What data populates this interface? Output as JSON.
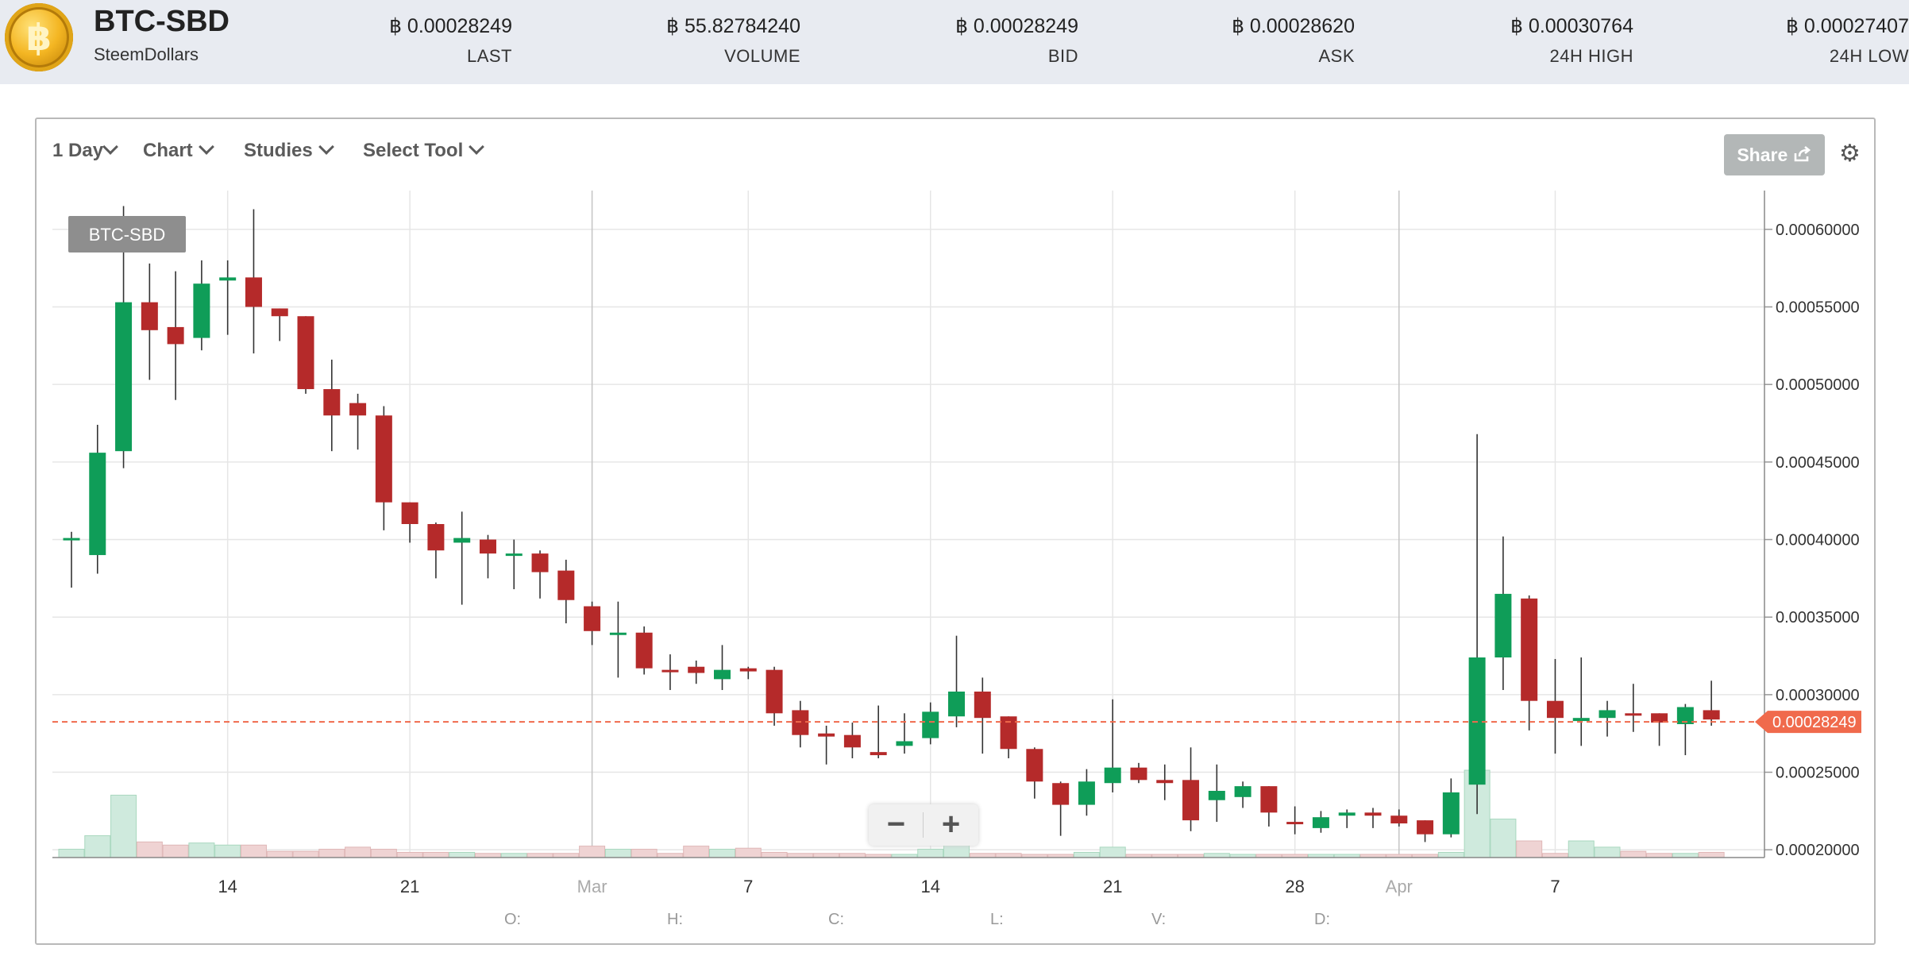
{
  "header": {
    "pair": "BTC-SBD",
    "name": "SteemDollars",
    "stats": [
      {
        "value": "฿ 0.00028249",
        "label": "LAST"
      },
      {
        "value": "฿ 55.82784240",
        "label": "VOLUME"
      },
      {
        "value": "฿ 0.00028249",
        "label": "BID"
      },
      {
        "value": "฿ 0.00028620",
        "label": "ASK"
      },
      {
        "value": "฿ 0.00030764",
        "label": "24H HIGH"
      },
      {
        "value": "฿ 0.00027407",
        "label": "24H LOW"
      }
    ]
  },
  "toolbar": {
    "period": "1 Day",
    "chart": "Chart",
    "studies": "Studies",
    "select_tool": "Select Tool",
    "share": "Share"
  },
  "zoom": {
    "minus": "−",
    "plus": "+"
  },
  "icons": {
    "logo": "bitcoin-logo-icon",
    "share": "share-icon",
    "gear": "gear-icon"
  },
  "colors": {
    "up": "#0f9d58",
    "down": "#b52a2a",
    "last_price": "#f06a4c",
    "vol_up": "#cfeadd",
    "vol_down": "#efd3d3"
  },
  "chart_data": {
    "type": "candlestick",
    "title": "",
    "series_label": "BTC-SBD",
    "ylim": [
      0.000195,
      0.000625
    ],
    "y_ticks": [
      "0.00020000",
      "0.00025000",
      "0.00030000",
      "0.00035000",
      "0.00040000",
      "0.00045000",
      "0.00050000",
      "0.00055000",
      "0.00060000"
    ],
    "x_ticks": [
      {
        "label": "14",
        "i": 6
      },
      {
        "label": "21",
        "i": 13
      },
      {
        "label": "Mar",
        "i": 20,
        "major": true
      },
      {
        "label": "7",
        "i": 26
      },
      {
        "label": "14",
        "i": 33
      },
      {
        "label": "21",
        "i": 40
      },
      {
        "label": "28",
        "i": 47
      },
      {
        "label": "Apr",
        "i": 51,
        "major": true
      },
      {
        "label": "7",
        "i": 57
      }
    ],
    "last_price": "0.00028249",
    "last_price_value": 0.00028249,
    "ohlc_legend": [
      "O:",
      "H:",
      "C:",
      "L:",
      "V:",
      "D:"
    ],
    "candles": [
      {
        "o": 0.000401,
        "h": 0.000405,
        "l": 0.000369,
        "c": 0.000401,
        "v": 0.8
      },
      {
        "o": 0.00039,
        "h": 0.000474,
        "l": 0.000378,
        "c": 0.000456,
        "v": 2.1
      },
      {
        "o": 0.000457,
        "h": 0.000615,
        "l": 0.000446,
        "c": 0.000553,
        "v": 6.0
      },
      {
        "o": 0.000553,
        "h": 0.000578,
        "l": 0.000503,
        "c": 0.000535,
        "v": 1.5
      },
      {
        "o": 0.000537,
        "h": 0.000573,
        "l": 0.00049,
        "c": 0.000526,
        "v": 1.2
      },
      {
        "o": 0.00053,
        "h": 0.00058,
        "l": 0.000522,
        "c": 0.000565,
        "v": 1.4
      },
      {
        "o": 0.000567,
        "h": 0.00058,
        "l": 0.000532,
        "c": 0.000569,
        "v": 1.2
      },
      {
        "o": 0.000569,
        "h": 0.000613,
        "l": 0.00052,
        "c": 0.00055,
        "v": 1.2
      },
      {
        "o": 0.000549,
        "h": 0.000549,
        "l": 0.000528,
        "c": 0.000544,
        "v": 0.6
      },
      {
        "o": 0.000544,
        "h": 0.000544,
        "l": 0.000494,
        "c": 0.000497,
        "v": 0.6
      },
      {
        "o": 0.000497,
        "h": 0.000516,
        "l": 0.000457,
        "c": 0.00048,
        "v": 0.8
      },
      {
        "o": 0.000488,
        "h": 0.000494,
        "l": 0.000458,
        "c": 0.00048,
        "v": 1.0
      },
      {
        "o": 0.00048,
        "h": 0.000486,
        "l": 0.000406,
        "c": 0.000424,
        "v": 0.8
      },
      {
        "o": 0.000424,
        "h": 0.000424,
        "l": 0.000398,
        "c": 0.00041,
        "v": 0.5
      },
      {
        "o": 0.00041,
        "h": 0.000411,
        "l": 0.000375,
        "c": 0.000393,
        "v": 0.5
      },
      {
        "o": 0.000398,
        "h": 0.000418,
        "l": 0.000358,
        "c": 0.000401,
        "v": 0.5
      },
      {
        "o": 0.0004,
        "h": 0.000403,
        "l": 0.000375,
        "c": 0.000391,
        "v": 0.4
      },
      {
        "o": 0.000391,
        "h": 0.0004,
        "l": 0.000368,
        "c": 0.000391,
        "v": 0.4
      },
      {
        "o": 0.000391,
        "h": 0.000393,
        "l": 0.000362,
        "c": 0.000379,
        "v": 0.4
      },
      {
        "o": 0.00038,
        "h": 0.000387,
        "l": 0.000346,
        "c": 0.000361,
        "v": 0.4
      },
      {
        "o": 0.000357,
        "h": 0.00036,
        "l": 0.000332,
        "c": 0.000341,
        "v": 1.1
      },
      {
        "o": 0.00034,
        "h": 0.00036,
        "l": 0.000311,
        "c": 0.00034,
        "v": 0.8
      },
      {
        "o": 0.00034,
        "h": 0.000344,
        "l": 0.000313,
        "c": 0.000317,
        "v": 0.8
      },
      {
        "o": 0.000316,
        "h": 0.000326,
        "l": 0.000303,
        "c": 0.000315,
        "v": 0.4
      },
      {
        "o": 0.000318,
        "h": 0.000322,
        "l": 0.000307,
        "c": 0.000314,
        "v": 1.1
      },
      {
        "o": 0.00031,
        "h": 0.000332,
        "l": 0.000303,
        "c": 0.000316,
        "v": 0.8
      },
      {
        "o": 0.000317,
        "h": 0.000318,
        "l": 0.00031,
        "c": 0.000315,
        "v": 0.9
      },
      {
        "o": 0.000316,
        "h": 0.000318,
        "l": 0.00028,
        "c": 0.000288,
        "v": 0.5
      },
      {
        "o": 0.00029,
        "h": 0.000296,
        "l": 0.000266,
        "c": 0.000274,
        "v": 0.4
      },
      {
        "o": 0.000275,
        "h": 0.00028,
        "l": 0.000255,
        "c": 0.000273,
        "v": 0.4
      },
      {
        "o": 0.000274,
        "h": 0.000282,
        "l": 0.000259,
        "c": 0.000266,
        "v": 0.4
      },
      {
        "o": 0.000263,
        "h": 0.000293,
        "l": 0.000259,
        "c": 0.000261,
        "v": 0.3
      },
      {
        "o": 0.000267,
        "h": 0.000288,
        "l": 0.000262,
        "c": 0.00027,
        "v": 0.3
      },
      {
        "o": 0.000272,
        "h": 0.000295,
        "l": 0.000268,
        "c": 0.000289,
        "v": 0.8
      },
      {
        "o": 0.000286,
        "h": 0.000338,
        "l": 0.000279,
        "c": 0.000302,
        "v": 2.0
      },
      {
        "o": 0.000302,
        "h": 0.000311,
        "l": 0.000262,
        "c": 0.000285,
        "v": 0.4
      },
      {
        "o": 0.000286,
        "h": 0.000286,
        "l": 0.000259,
        "c": 0.000265,
        "v": 0.4
      },
      {
        "o": 0.000265,
        "h": 0.000266,
        "l": 0.000233,
        "c": 0.000244,
        "v": 0.3
      },
      {
        "o": 0.000243,
        "h": 0.000244,
        "l": 0.000209,
        "c": 0.000229,
        "v": 0.3
      },
      {
        "o": 0.000229,
        "h": 0.000252,
        "l": 0.000222,
        "c": 0.000244,
        "v": 0.5
      },
      {
        "o": 0.000243,
        "h": 0.000297,
        "l": 0.000237,
        "c": 0.000253,
        "v": 1.0
      },
      {
        "o": 0.000253,
        "h": 0.000256,
        "l": 0.000243,
        "c": 0.000245,
        "v": 0.3
      },
      {
        "o": 0.000245,
        "h": 0.000255,
        "l": 0.000232,
        "c": 0.000243,
        "v": 0.3
      },
      {
        "o": 0.000245,
        "h": 0.000266,
        "l": 0.000212,
        "c": 0.000219,
        "v": 0.3
      },
      {
        "o": 0.000232,
        "h": 0.000255,
        "l": 0.000218,
        "c": 0.000238,
        "v": 0.4
      },
      {
        "o": 0.000234,
        "h": 0.000244,
        "l": 0.000227,
        "c": 0.000241,
        "v": 0.2
      },
      {
        "o": 0.000241,
        "h": 0.000241,
        "l": 0.000215,
        "c": 0.000224,
        "v": 0.2
      },
      {
        "o": 0.000218,
        "h": 0.000228,
        "l": 0.00021,
        "c": 0.000217,
        "v": 0.2
      },
      {
        "o": 0.000214,
        "h": 0.000225,
        "l": 0.000211,
        "c": 0.000221,
        "v": 0.2
      },
      {
        "o": 0.000222,
        "h": 0.000226,
        "l": 0.000214,
        "c": 0.000224,
        "v": 0.2
      },
      {
        "o": 0.000224,
        "h": 0.000227,
        "l": 0.000214,
        "c": 0.000222,
        "v": 0.2
      },
      {
        "o": 0.000222,
        "h": 0.000226,
        "l": 0.000215,
        "c": 0.000217,
        "v": 0.2
      },
      {
        "o": 0.000219,
        "h": 0.000219,
        "l": 0.000205,
        "c": 0.00021,
        "v": 0.2
      },
      {
        "o": 0.00021,
        "h": 0.000246,
        "l": 0.000208,
        "c": 0.000237,
        "v": 0.5
      },
      {
        "o": 0.000242,
        "h": 0.000468,
        "l": 0.000223,
        "c": 0.000324,
        "v": 8.4
      },
      {
        "o": 0.000324,
        "h": 0.000402,
        "l": 0.000303,
        "c": 0.000365,
        "v": 3.7
      },
      {
        "o": 0.000362,
        "h": 0.000364,
        "l": 0.000277,
        "c": 0.000296,
        "v": 1.6
      },
      {
        "o": 0.000296,
        "h": 0.000323,
        "l": 0.000262,
        "c": 0.000285,
        "v": 0.4
      },
      {
        "o": 0.000283,
        "h": 0.000324,
        "l": 0.000267,
        "c": 0.000285,
        "v": 1.6
      },
      {
        "o": 0.000285,
        "h": 0.000296,
        "l": 0.000273,
        "c": 0.00029,
        "v": 1.0
      },
      {
        "o": 0.000288,
        "h": 0.000307,
        "l": 0.000276,
        "c": 0.000287,
        "v": 0.6
      },
      {
        "o": 0.000288,
        "h": 0.000288,
        "l": 0.000267,
        "c": 0.000282,
        "v": 0.4
      },
      {
        "o": 0.000281,
        "h": 0.000294,
        "l": 0.000261,
        "c": 0.000292,
        "v": 0.4
      },
      {
        "o": 0.00029,
        "h": 0.000309,
        "l": 0.00028,
        "c": 0.000284,
        "v": 0.5
      }
    ]
  }
}
